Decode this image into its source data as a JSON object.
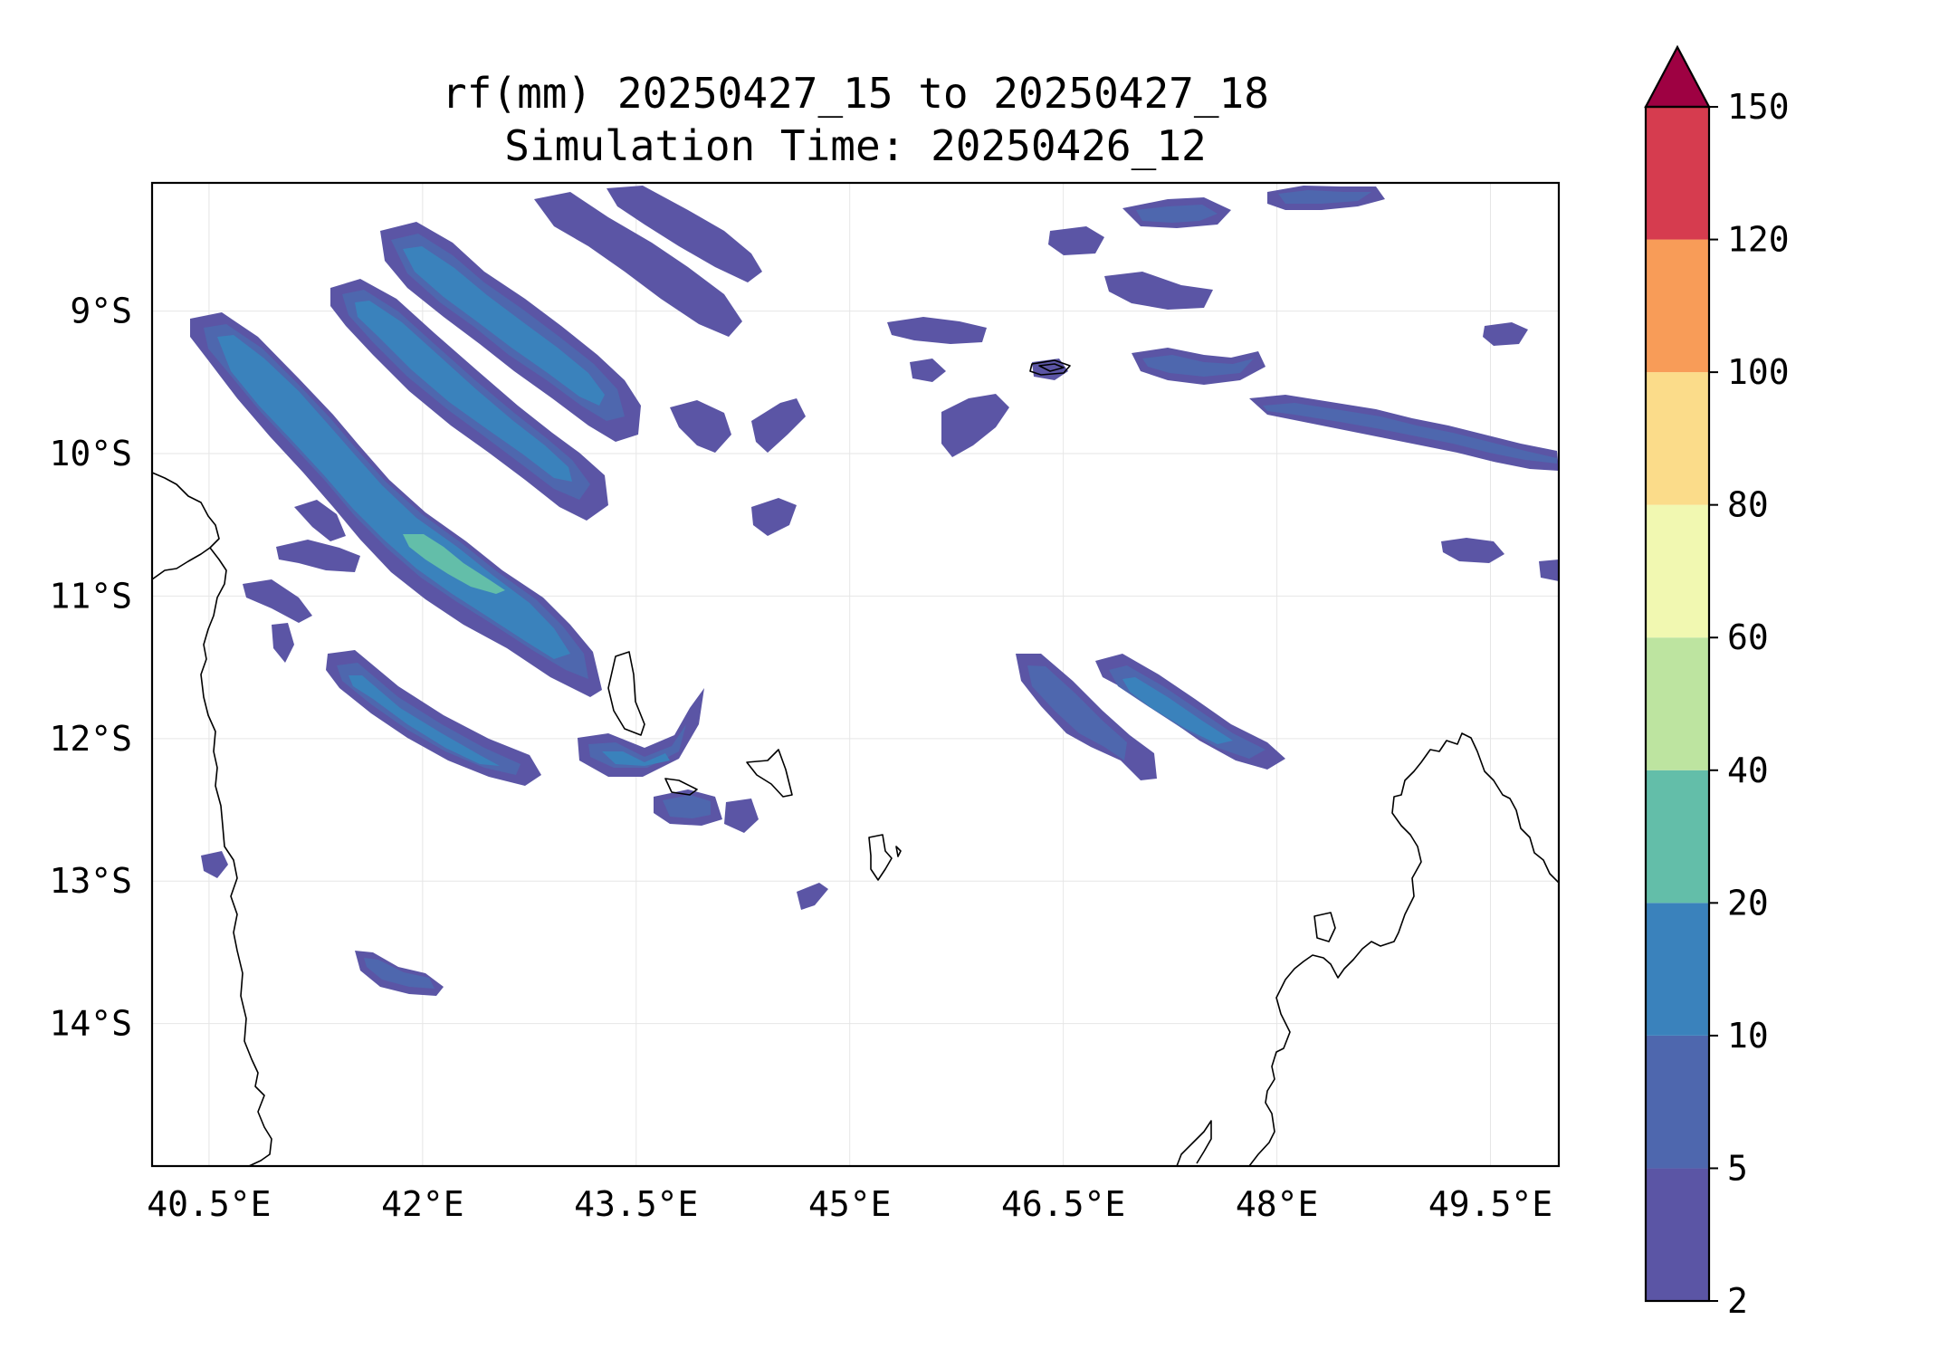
{
  "title": {
    "line1": "rf(mm) 20250427_15 to 20250427_18",
    "line2": "Simulation Time: 20250426_12"
  },
  "map": {
    "variable": "rf(mm)",
    "extent": {
      "lon": [
        40.1,
        49.98
      ],
      "lat": [
        -15.0,
        -8.1
      ]
    },
    "x_ticks": [
      {
        "value": 40.5,
        "label": "40.5°E"
      },
      {
        "value": 42.0,
        "label": "42°E"
      },
      {
        "value": 43.5,
        "label": "43.5°E"
      },
      {
        "value": 45.0,
        "label": "45°E"
      },
      {
        "value": 46.5,
        "label": "46.5°E"
      },
      {
        "value": 48.0,
        "label": "48°E"
      },
      {
        "value": 49.5,
        "label": "49.5°E"
      }
    ],
    "y_ticks": [
      {
        "value": -9,
        "label": "9°S"
      },
      {
        "value": -10,
        "label": "10°S"
      },
      {
        "value": -11,
        "label": "11°S"
      },
      {
        "value": -12,
        "label": "12°S"
      },
      {
        "value": -13,
        "label": "13°S"
      },
      {
        "value": -14,
        "label": "14°S"
      }
    ],
    "grid": true,
    "features": [
      "coastline",
      "islands",
      "rainfall-contours"
    ]
  },
  "colorbar": {
    "levels": [
      {
        "value": 2,
        "label": "2"
      },
      {
        "value": 5,
        "label": "5"
      },
      {
        "value": 10,
        "label": "10"
      },
      {
        "value": 20,
        "label": "20"
      },
      {
        "value": 40,
        "label": "40"
      },
      {
        "value": 60,
        "label": "60"
      },
      {
        "value": 80,
        "label": "80"
      },
      {
        "value": 100,
        "label": "100"
      },
      {
        "value": 120,
        "label": "120"
      },
      {
        "value": 150,
        "label": "150"
      }
    ],
    "colors": [
      "#5b55a5",
      "#4e67ae",
      "#3a82bc",
      "#63bea9",
      "#bde4a0",
      "#f1f8b1",
      "#fbdc8a",
      "#f89c58",
      "#d63c4f"
    ],
    "extend_color": "#9e0142",
    "extend": "max",
    "placement": "right"
  },
  "colors": {
    "rain_2_5": "#5b55a5",
    "rain_5_10": "#4e67ae",
    "rain_10_20": "#3a82bc",
    "rain_20_40": "#63bea9",
    "coastline": "#000000"
  }
}
